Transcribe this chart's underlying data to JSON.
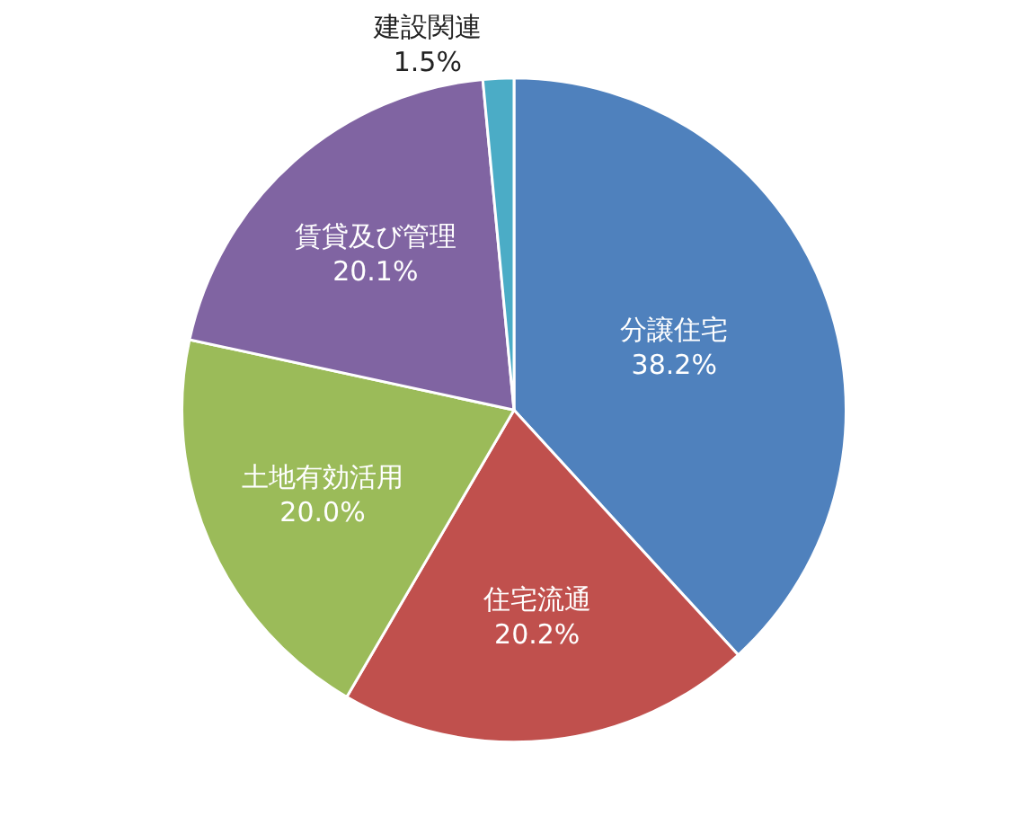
{
  "chart_data": {
    "type": "pie",
    "categories": [
      "分譲住宅",
      "住宅流通",
      "土地有効活用",
      "賃貸及び管理",
      "建設関連"
    ],
    "values": [
      38.2,
      20.2,
      20.0,
      20.1,
      1.5
    ],
    "value_labels": [
      "38.2%",
      "20.2%",
      "20.0%",
      "20.1%",
      "1.5%"
    ],
    "colors": [
      "#4f81bd",
      "#c0504d",
      "#9bbb59",
      "#8064a2",
      "#4bacc6"
    ],
    "legend": false
  }
}
